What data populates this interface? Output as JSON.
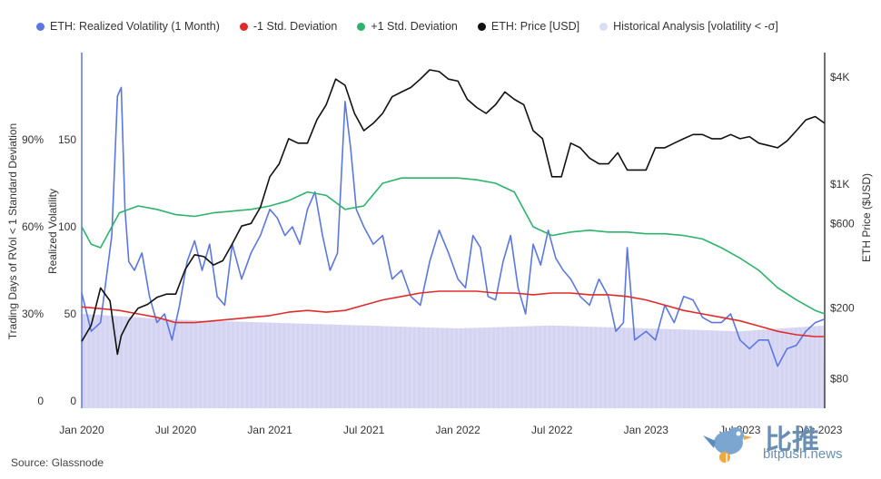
{
  "legend": [
    {
      "label": "ETH: Realized Volatility (1 Month)",
      "color": "#5b77e0"
    },
    {
      "label": "-1 Std. Deviation",
      "color": "#e02b2b"
    },
    {
      "label": "+1 Std. Deviation",
      "color": "#2db36b"
    },
    {
      "label": "ETH: Price [USD]",
      "color": "#111111"
    },
    {
      "label": "Historical Analysis [volatility < -σ]",
      "color": "#dcdcf5"
    }
  ],
  "source": "Source: Glassnode",
  "watermark": {
    "cn": "比推",
    "en": "bitpush.news"
  },
  "chart_data": {
    "type": "line",
    "x_ticks": [
      "Jan 2020",
      "Jul 2020",
      "Jan 2021",
      "Jul 2021",
      "Jan 2022",
      "Jul 2022",
      "Jan 2023",
      "Jul 2023",
      "Dec 2023"
    ],
    "left_axis_1": {
      "title": "Trading Days of RVol < 1 Standard Deviation",
      "ticks": [
        "0",
        "30%",
        "60%",
        "90%"
      ],
      "range": [
        0,
        1.2
      ]
    },
    "left_axis_2": {
      "title": "Realized Volatility",
      "ticks": [
        "0",
        "50",
        "100",
        "150"
      ],
      "range": [
        0,
        200
      ]
    },
    "right_axis": {
      "title": "ETH Price ($USD)",
      "scale": "log",
      "ticks": [
        "$80",
        "$200",
        "$600",
        "$1K",
        "$4K"
      ],
      "tick_values": [
        80,
        200,
        600,
        1000,
        4000
      ],
      "range": [
        60,
        5500
      ]
    },
    "series": [
      {
        "name": "ETH: Realized Volatility (1 Month)",
        "color": "#5b77e0",
        "x": [
          2020.0,
          2020.05,
          2020.1,
          2020.13,
          2020.16,
          2020.19,
          2020.21,
          2020.23,
          2020.25,
          2020.28,
          2020.32,
          2020.36,
          2020.4,
          2020.44,
          2020.48,
          2020.52,
          2020.56,
          2020.6,
          2020.64,
          2020.68,
          2020.72,
          2020.76,
          2020.8,
          2020.85,
          2020.9,
          2020.95,
          2021.0,
          2021.04,
          2021.08,
          2021.12,
          2021.16,
          2021.2,
          2021.24,
          2021.28,
          2021.32,
          2021.36,
          2021.4,
          2021.43,
          2021.46,
          2021.5,
          2021.55,
          2021.6,
          2021.65,
          2021.7,
          2021.75,
          2021.8,
          2021.85,
          2021.9,
          2021.95,
          2022.0,
          2022.04,
          2022.08,
          2022.12,
          2022.16,
          2022.2,
          2022.24,
          2022.28,
          2022.32,
          2022.36,
          2022.4,
          2022.44,
          2022.48,
          2022.52,
          2022.56,
          2022.6,
          2022.65,
          2022.7,
          2022.75,
          2022.8,
          2022.84,
          2022.88,
          2022.9,
          2022.94,
          2023.0,
          2023.05,
          2023.1,
          2023.15,
          2023.2,
          2023.25,
          2023.3,
          2023.35,
          2023.4,
          2023.45,
          2023.5,
          2023.55,
          2023.6,
          2023.65,
          2023.7,
          2023.75,
          2023.8,
          2023.85,
          2023.9,
          2023.95
        ],
        "values": [
          62,
          40,
          45,
          70,
          95,
          175,
          180,
          110,
          80,
          75,
          85,
          60,
          45,
          50,
          35,
          55,
          80,
          92,
          75,
          90,
          60,
          55,
          90,
          70,
          85,
          95,
          110,
          105,
          95,
          100,
          90,
          110,
          120,
          95,
          75,
          85,
          172,
          145,
          110,
          100,
          90,
          95,
          70,
          75,
          60,
          55,
          80,
          98,
          85,
          70,
          65,
          95,
          88,
          60,
          58,
          80,
          95,
          65,
          50,
          90,
          78,
          98,
          82,
          75,
          70,
          60,
          55,
          70,
          60,
          40,
          45,
          88,
          35,
          40,
          35,
          55,
          45,
          60,
          58,
          48,
          45,
          45,
          50,
          35,
          30,
          35,
          35,
          20,
          30,
          32,
          40,
          45,
          47
        ]
      },
      {
        "name": "-1 Std. Deviation",
        "color": "#e02b2b",
        "x": [
          2020.0,
          2020.1,
          2020.2,
          2020.3,
          2020.4,
          2020.5,
          2020.6,
          2020.7,
          2020.8,
          2020.9,
          2021.0,
          2021.1,
          2021.2,
          2021.3,
          2021.4,
          2021.5,
          2021.6,
          2021.7,
          2021.8,
          2021.9,
          2022.0,
          2022.1,
          2022.2,
          2022.3,
          2022.4,
          2022.5,
          2022.6,
          2022.7,
          2022.8,
          2022.9,
          2023.0,
          2023.1,
          2023.2,
          2023.3,
          2023.4,
          2023.5,
          2023.6,
          2023.7,
          2023.8,
          2023.9,
          2023.95
        ],
        "values": [
          54,
          53,
          52,
          50,
          48,
          45,
          45,
          46,
          47,
          48,
          49,
          51,
          52,
          51,
          52,
          55,
          58,
          60,
          62,
          63,
          63,
          63,
          62,
          62,
          61,
          62,
          62,
          61,
          61,
          60,
          58,
          55,
          52,
          50,
          48,
          46,
          43,
          40,
          38,
          37,
          37
        ]
      },
      {
        "name": "+1 Std. Deviation",
        "color": "#2db36b",
        "x": [
          2020.0,
          2020.05,
          2020.1,
          2020.2,
          2020.3,
          2020.4,
          2020.5,
          2020.6,
          2020.7,
          2020.8,
          2020.9,
          2021.0,
          2021.1,
          2021.2,
          2021.3,
          2021.4,
          2021.5,
          2021.6,
          2021.7,
          2021.8,
          2021.9,
          2022.0,
          2022.1,
          2022.2,
          2022.3,
          2022.4,
          2022.5,
          2022.6,
          2022.7,
          2022.8,
          2022.9,
          2023.0,
          2023.1,
          2023.2,
          2023.3,
          2023.4,
          2023.5,
          2023.6,
          2023.7,
          2023.8,
          2023.9,
          2023.95
        ],
        "values": [
          100,
          90,
          88,
          108,
          112,
          110,
          107,
          106,
          108,
          109,
          110,
          112,
          115,
          120,
          118,
          110,
          112,
          125,
          128,
          128,
          128,
          128,
          127,
          125,
          120,
          100,
          95,
          97,
          98,
          97,
          97,
          96,
          96,
          95,
          93,
          88,
          82,
          75,
          65,
          58,
          52,
          50
        ]
      },
      {
        "name": "ETH: Price [USD]",
        "color": "#111111",
        "axis": "right",
        "x": [
          2020.0,
          2020.05,
          2020.1,
          2020.15,
          2020.19,
          2020.21,
          2020.25,
          2020.3,
          2020.35,
          2020.4,
          2020.45,
          2020.5,
          2020.55,
          2020.6,
          2020.65,
          2020.7,
          2020.75,
          2020.8,
          2020.85,
          2020.9,
          2020.95,
          2021.0,
          2021.05,
          2021.1,
          2021.15,
          2021.2,
          2021.25,
          2021.3,
          2021.35,
          2021.4,
          2021.45,
          2021.5,
          2021.55,
          2021.6,
          2021.65,
          2021.7,
          2021.75,
          2021.8,
          2021.85,
          2021.9,
          2021.95,
          2022.0,
          2022.05,
          2022.1,
          2022.15,
          2022.2,
          2022.25,
          2022.3,
          2022.35,
          2022.4,
          2022.45,
          2022.5,
          2022.55,
          2022.6,
          2022.65,
          2022.7,
          2022.75,
          2022.8,
          2022.85,
          2022.9,
          2022.95,
          2023.0,
          2023.05,
          2023.1,
          2023.15,
          2023.2,
          2023.25,
          2023.3,
          2023.35,
          2023.4,
          2023.45,
          2023.5,
          2023.55,
          2023.6,
          2023.65,
          2023.7,
          2023.75,
          2023.8,
          2023.85,
          2023.9,
          2023.95
        ],
        "values": [
          130,
          160,
          260,
          220,
          110,
          140,
          170,
          200,
          210,
          230,
          240,
          240,
          330,
          400,
          390,
          350,
          370,
          460,
          580,
          600,
          740,
          1100,
          1300,
          1800,
          1700,
          1700,
          2300,
          2800,
          3900,
          3600,
          2500,
          2000,
          2200,
          2500,
          3100,
          3300,
          3500,
          3900,
          4400,
          4300,
          3900,
          3800,
          3000,
          2700,
          2500,
          2800,
          3300,
          3000,
          2800,
          2000,
          1800,
          1100,
          1100,
          1700,
          1600,
          1400,
          1300,
          1300,
          1500,
          1200,
          1200,
          1200,
          1600,
          1600,
          1700,
          1800,
          1900,
          1900,
          1800,
          1800,
          1900,
          1800,
          1850,
          1700,
          1650,
          1600,
          1750,
          2000,
          2300,
          2400,
          2200
        ]
      }
    ],
    "historical_analysis": {
      "name": "Historical Analysis [volatility < -σ]",
      "color": "#dcdcf5",
      "x": [
        2020.0,
        2020.5,
        2021.0,
        2021.5,
        2022.0,
        2022.5,
        2023.0,
        2023.5,
        2023.95
      ],
      "values": [
        0.3,
        0.28,
        0.27,
        0.26,
        0.25,
        0.26,
        0.25,
        0.24,
        0.26
      ]
    }
  }
}
